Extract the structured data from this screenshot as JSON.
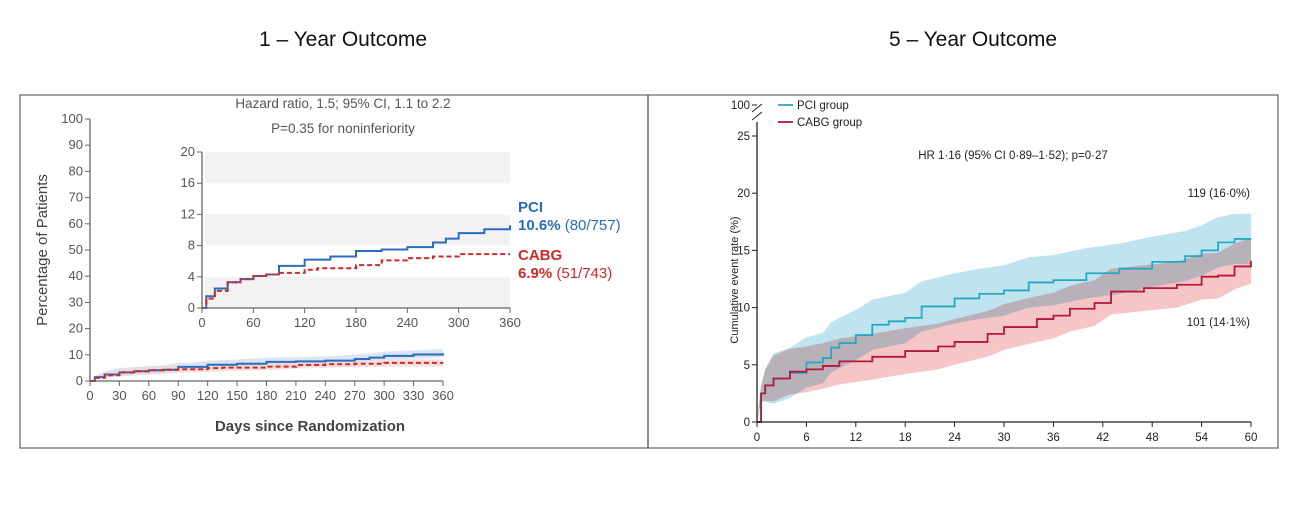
{
  "panels": [
    {
      "title": "1 – Year Outcome"
    },
    {
      "title": "5 – Year Outcome"
    }
  ],
  "colors": {
    "pci_1yr": "#2a6ebb",
    "cabg_1yr": "#cc2a2a",
    "pci_5yr": "#2aa7c0",
    "cabg_5yr": "#b5173f",
    "pci_band": "#a9dbeb",
    "cabg_band": "#f3b3b3",
    "inset_band": "#f3f1f1"
  },
  "chart_data": [
    {
      "type": "line",
      "title": "1 – Year Outcome",
      "annotation": [
        "Hazard ratio, 1.5; 95% CI, 1.1 to 2.2",
        "P=0.35 for noninferiority"
      ],
      "xlabel": "Days since Randomization",
      "ylabel": "Percentage of Patients",
      "xlim": [
        0,
        360
      ],
      "ylim": [
        0,
        100
      ],
      "xticks": [
        "0",
        "30",
        "60",
        "90",
        "120",
        "150",
        "180",
        "210",
        "240",
        "270",
        "300",
        "330",
        "360"
      ],
      "yticks": [
        "0",
        "10",
        "20",
        "30",
        "40",
        "50",
        "60",
        "70",
        "80",
        "90",
        "100"
      ],
      "series": [
        {
          "name": "PCI",
          "label": "10.6%",
          "count": "(80/757)",
          "style": "solid",
          "ci_halfwidth": 1.6,
          "x": [
            0,
            5,
            15,
            30,
            45,
            60,
            75,
            90,
            105,
            120,
            150,
            180,
            210,
            240,
            270,
            285,
            300,
            330,
            360
          ],
          "y": [
            0,
            1.5,
            2.5,
            3.3,
            3.7,
            4.1,
            4.3,
            5.4,
            5.4,
            6.2,
            6.6,
            7.3,
            7.5,
            7.8,
            8.4,
            8.9,
            9.6,
            10.1,
            10.6
          ]
        },
        {
          "name": "CABG",
          "label": "6.9%",
          "count": "(51/743)",
          "style": "dashed",
          "ci_halfwidth": 1.4,
          "x": [
            0,
            5,
            15,
            30,
            45,
            60,
            75,
            90,
            120,
            135,
            180,
            210,
            240,
            270,
            300,
            360
          ],
          "y": [
            0,
            1.2,
            2.2,
            3.3,
            3.7,
            4.1,
            4.3,
            4.5,
            4.9,
            5.1,
            5.5,
            6.1,
            6.4,
            6.6,
            6.9,
            6.9
          ]
        }
      ],
      "inset": {
        "xlim": [
          0,
          360
        ],
        "ylim": [
          0,
          20
        ],
        "xticks": [
          "0",
          "60",
          "120",
          "180",
          "240",
          "300",
          "360"
        ],
        "yticks": [
          "0",
          "4",
          "8",
          "12",
          "16",
          "20"
        ]
      }
    },
    {
      "type": "line",
      "title": "5 – Year Outcome",
      "annotation": [
        "HR 1·16 (95% CI 0·89–1·52); p=0·27"
      ],
      "xlabel": "",
      "ylabel": "Cumulative event rate (%)",
      "xlim": [
        0,
        60
      ],
      "ylim": [
        0,
        25
      ],
      "xticks": [
        "0",
        "6",
        "12",
        "18",
        "24",
        "30",
        "36",
        "42",
        "48",
        "54",
        "60"
      ],
      "yticks": [
        "0",
        "5",
        "10",
        "15",
        "20",
        "25"
      ],
      "ybreak_label": "100",
      "legend": {
        "position": "top-left",
        "entries": [
          "PCI group",
          "CABG group"
        ]
      },
      "series": [
        {
          "name": "PCI group",
          "end_label": "119 (16·0%)",
          "ci_halfwidth": 2.2,
          "x": [
            0,
            0.5,
            1,
            2,
            4,
            6,
            8,
            9,
            10,
            12,
            14,
            16,
            18,
            20,
            24,
            27,
            30,
            33,
            36,
            40,
            44,
            48,
            52,
            54,
            56,
            58,
            60
          ],
          "y": [
            0,
            2.5,
            3.2,
            3.8,
            4.3,
            5.2,
            5.6,
            6.5,
            6.9,
            7.6,
            8.5,
            8.8,
            9.1,
            10.1,
            10.8,
            11.2,
            11.5,
            12.2,
            12.4,
            13.0,
            13.4,
            14.0,
            14.5,
            15.0,
            15.7,
            16.0,
            16.0
          ]
        },
        {
          "name": "CABG group",
          "end_label": "101 (14·1%)",
          "ci_halfwidth": 2.0,
          "x": [
            0,
            0.5,
            1,
            2,
            4,
            6,
            8,
            10,
            14,
            18,
            22,
            24,
            28,
            30,
            34,
            36,
            38,
            41,
            43,
            47,
            51,
            54,
            56,
            58,
            60
          ],
          "y": [
            0,
            2.5,
            3.2,
            3.8,
            4.4,
            4.6,
            4.9,
            5.3,
            5.7,
            6.2,
            6.6,
            7.0,
            7.7,
            8.3,
            9.0,
            9.3,
            9.9,
            10.4,
            11.4,
            11.7,
            12.0,
            12.7,
            12.8,
            13.6,
            14.1
          ]
        }
      ]
    }
  ]
}
